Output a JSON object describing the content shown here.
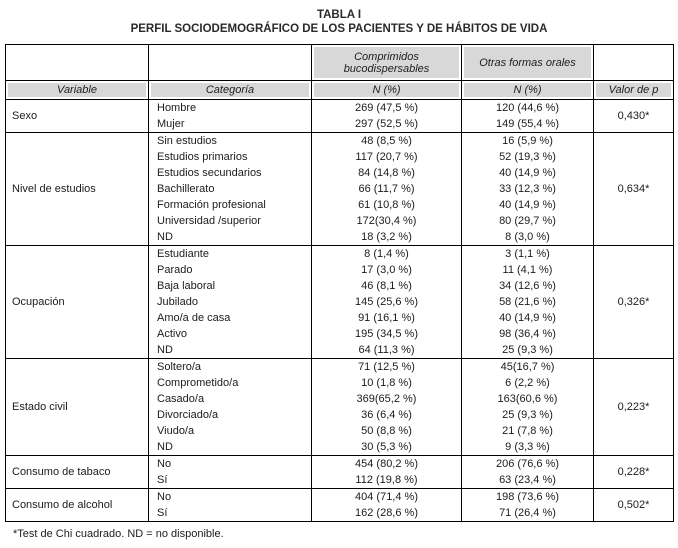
{
  "title": "TABLA I",
  "subtitle": "PERFIL SOCIODEMOGRÁFICO DE LOS PACIENTES Y DE HÁBITOS DE VIDA",
  "colors": {
    "header_bg": "#d8d8d8",
    "border": "#000000"
  },
  "header": {
    "group_cols": [
      "Comprimidos bucodispersables",
      "Otras formas orales"
    ],
    "columns": [
      "Variable",
      "Categoría",
      "N (%)",
      "N (%)",
      "Valor de p"
    ]
  },
  "groups": [
    {
      "variable": "Sexo",
      "p": "0,430*",
      "rows": [
        {
          "category": "Hombre",
          "n1": "269 (47,5 %)",
          "n2": "120 (44,6 %)"
        },
        {
          "category": "Mujer",
          "n1": "297 (52,5 %)",
          "n2": "149 (55,4 %)"
        }
      ]
    },
    {
      "variable": "Nivel de estudios",
      "p": "0,634*",
      "rows": [
        {
          "category": "Sin estudios",
          "n1": "48 (8,5 %)",
          "n2": "16 (5,9 %)"
        },
        {
          "category": "Estudios primarios",
          "n1": "117 (20,7 %)",
          "n2": "52 (19,3 %)"
        },
        {
          "category": "Estudios secundarios",
          "n1": "84 (14,8 %)",
          "n2": "40 (14,9 %)"
        },
        {
          "category": "Bachillerato",
          "n1": "66 (11,7 %)",
          "n2": "33 (12,3 %)"
        },
        {
          "category": "Formación profesional",
          "n1": "61 (10,8 %)",
          "n2": "40 (14,9 %)"
        },
        {
          "category": "Universidad /superior",
          "n1": "172(30,4 %)",
          "n2": "80 (29,7 %)"
        },
        {
          "category": "ND",
          "n1": "18 (3,2 %)",
          "n2": "8 (3,0 %)"
        }
      ]
    },
    {
      "variable": "Ocupación",
      "p": "0,326*",
      "rows": [
        {
          "category": "Estudiante",
          "n1": "8 (1,4 %)",
          "n2": "3 (1,1 %)"
        },
        {
          "category": "Parado",
          "n1": "17 (3,0 %)",
          "n2": "11 (4,1 %)"
        },
        {
          "category": "Baja laboral",
          "n1": "46 (8,1 %)",
          "n2": "34 (12,6 %)"
        },
        {
          "category": "Jubilado",
          "n1": "145 (25,6 %)",
          "n2": "58 (21,6 %)"
        },
        {
          "category": "Amo/a de casa",
          "n1": "91 (16,1 %)",
          "n2": "40 (14,9 %)"
        },
        {
          "category": "Activo",
          "n1": "195 (34,5 %)",
          "n2": "98 (36,4 %)"
        },
        {
          "category": "ND",
          "n1": "64 (11,3 %)",
          "n2": "25 (9,3 %)"
        }
      ]
    },
    {
      "variable": "Estado civil",
      "p": "0,223*",
      "rows": [
        {
          "category": "Soltero/a",
          "n1": "71 (12,5 %)",
          "n2": "45(16,7 %)"
        },
        {
          "category": "Comprometido/a",
          "n1": "10 (1,8 %)",
          "n2": "6 (2,2 %)"
        },
        {
          "category": "Casado/a",
          "n1": "369(65,2 %)",
          "n2": "163(60,6 %)"
        },
        {
          "category": "Divorciado/a",
          "n1": "36 (6,4 %)",
          "n2": "25 (9,3 %)"
        },
        {
          "category": "Viudo/a",
          "n1": "50 (8,8 %)",
          "n2": "21 (7,8 %)"
        },
        {
          "category": "ND",
          "n1": "30 (5,3 %)",
          "n2": "9 (3,3 %)"
        }
      ]
    },
    {
      "variable": "Consumo de tabaco",
      "p": "0,228*",
      "rows": [
        {
          "category": "No",
          "n1": "454 (80,2 %)",
          "n2": "206 (76,6 %)"
        },
        {
          "category": "Sí",
          "n1": "112 (19,8 %)",
          "n2": "63 (23,4 %)"
        }
      ]
    },
    {
      "variable": "Consumo de alcohol",
      "p": "0,502*",
      "rows": [
        {
          "category": "No",
          "n1": "404 (71,4 %)",
          "n2": "198 (73,6 %)"
        },
        {
          "category": "Sí",
          "n1": "162 (28,6 %)",
          "n2": "71 (26,4 %)"
        }
      ]
    }
  ],
  "footnote": "*Test de Chi cuadrado. ND = no disponible."
}
